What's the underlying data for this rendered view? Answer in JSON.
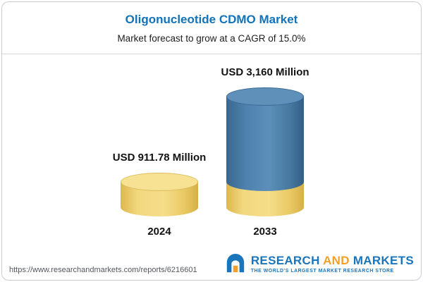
{
  "header": {
    "title": "Oligonucleotide CDMO Market",
    "subtitle": "Market forecast to grow at a CAGR of 15.0%"
  },
  "chart_data": {
    "type": "bar",
    "style": "3d-cylinder",
    "title": "Oligonucleotide CDMO Market",
    "subtitle": "Market forecast to grow at a CAGR of 15.0%",
    "categories": [
      "2024",
      "2033"
    ],
    "values": [
      911.78,
      3160
    ],
    "value_labels": [
      "USD 911.78 Million",
      "USD 3,160 Million"
    ],
    "unit": "USD Million",
    "ylim": [
      0,
      3160
    ],
    "grid": false,
    "legend": "none",
    "colors": {
      "base_segment": "#F2D87F",
      "growth_segment": "#4E81AD",
      "note": "2033 cylinder shows yellow 2024-sized base with blue growth portion on top"
    }
  },
  "footer": {
    "url": "https://www.researchandmarkets.com/reports/6216601",
    "logo": {
      "research": "RESEARCH",
      "and": "AND",
      "markets": "MARKETS",
      "tagline": "THE WORLD'S LARGEST MARKET RESEARCH STORE",
      "blue": "#1B75BB",
      "orange": "#F1A02C"
    }
  }
}
